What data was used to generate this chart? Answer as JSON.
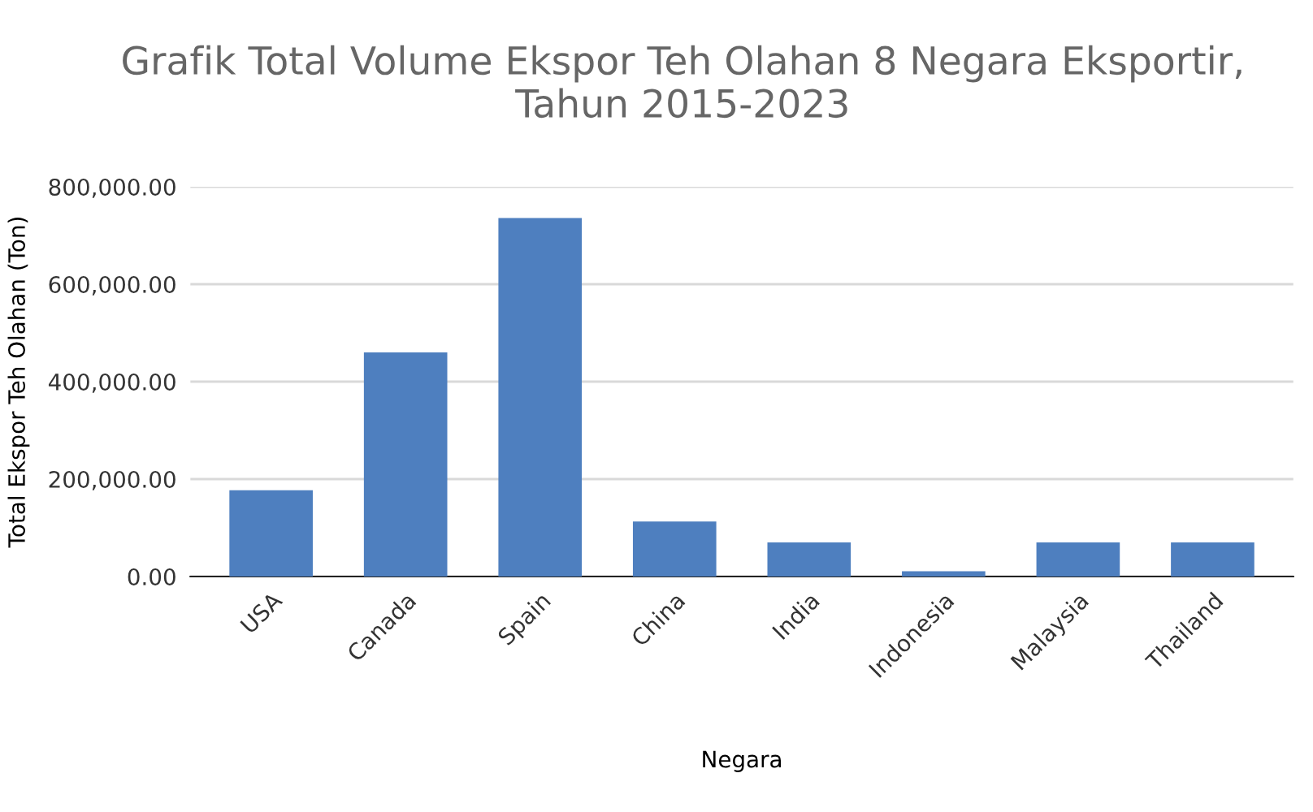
{
  "chart_data": {
    "type": "bar",
    "title": "Grafik Total Volume Ekspor Teh Olahan 8 Negara Eksportir,\nTahun 2015-2023",
    "xlabel": "Negara",
    "ylabel": "Total Ekspor Teh Olahan (Ton)",
    "categories": [
      "USA",
      "Canada",
      "Spain",
      "China",
      "India",
      "Indonesia",
      "Malaysia",
      "Thailand"
    ],
    "values": [
      177000,
      460000,
      736000,
      113000,
      70000,
      11000,
      70000,
      70000
    ],
    "color": "#4e7fbf",
    "ylim": [
      0,
      800000
    ],
    "yticks": [
      {
        "value": 0,
        "label": "0.00"
      },
      {
        "value": 200000,
        "label": "200,000.00"
      },
      {
        "value": 400000,
        "label": "400,000.00"
      },
      {
        "value": 600000,
        "label": "600,000.00"
      },
      {
        "value": 800000,
        "label": "800,000.00"
      }
    ],
    "grid": "y",
    "legend": false
  }
}
